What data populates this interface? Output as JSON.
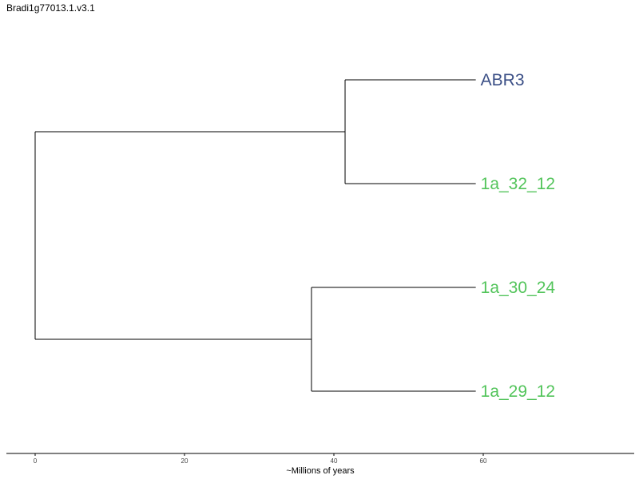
{
  "title": "Bradi1g77013.1.v3.1",
  "axis": {
    "label": "~Millions of years",
    "range": [
      0,
      80
    ],
    "ticks": [
      0,
      20,
      40,
      60
    ]
  },
  "colors": {
    "ABR3": "#3b4f86",
    "other": "#52c45a",
    "branch": "#000000"
  },
  "tree": {
    "leaves": [
      {
        "name": "ABR3",
        "age": 59,
        "color": "#3b4f86"
      },
      {
        "name": "1a_32_12",
        "age": 59,
        "color": "#52c45a"
      },
      {
        "name": "1a_30_24",
        "age": 59,
        "color": "#52c45a"
      },
      {
        "name": "1a_29_12",
        "age": 59,
        "color": "#52c45a"
      }
    ],
    "clades": [
      {
        "leaves": [
          "ABR3",
          "1a_32_12"
        ],
        "node_age": 41.5
      },
      {
        "leaves": [
          "1a_30_24",
          "1a_29_12"
        ],
        "node_age": 37
      }
    ],
    "root_age": 0
  }
}
